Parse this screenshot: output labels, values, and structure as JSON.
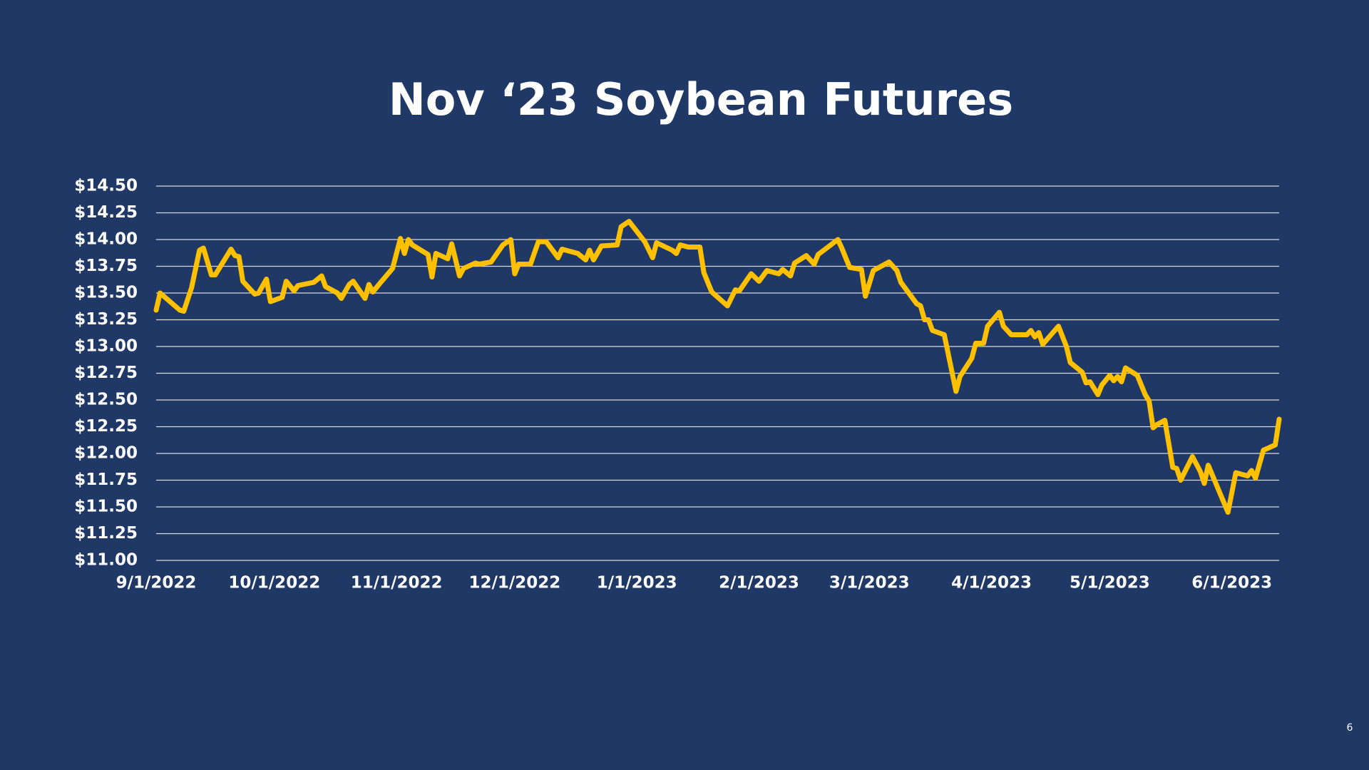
{
  "chart_data": {
    "type": "line",
    "title": "Nov ‘23 Soybean Futures",
    "x": [
      "2022-09-01",
      "2022-09-02",
      "2022-09-07",
      "2022-09-08",
      "2022-09-10",
      "2022-09-12",
      "2022-09-13",
      "2022-09-15",
      "2022-09-16",
      "2022-09-20",
      "2022-09-21",
      "2022-09-22",
      "2022-09-23",
      "2022-09-26",
      "2022-09-27",
      "2022-09-29",
      "2022-09-30",
      "2022-10-03",
      "2022-10-04",
      "2022-10-06",
      "2022-10-07",
      "2022-10-11",
      "2022-10-13",
      "2022-10-14",
      "2022-10-17",
      "2022-10-18",
      "2022-10-20",
      "2022-10-21",
      "2022-10-24",
      "2022-10-25",
      "2022-10-26",
      "2022-10-28",
      "2022-10-31",
      "2022-11-02",
      "2022-11-03",
      "2022-11-04",
      "2022-11-05",
      "2022-11-09",
      "2022-11-10",
      "2022-11-11",
      "2022-11-14",
      "2022-11-15",
      "2022-11-17",
      "2022-11-18",
      "2022-11-21",
      "2022-11-22",
      "2022-11-25",
      "2022-11-28",
      "2022-11-30",
      "2022-12-01",
      "2022-12-02",
      "2022-12-05",
      "2022-12-07",
      "2022-12-09",
      "2022-12-12",
      "2022-12-13",
      "2022-12-15",
      "2022-12-17",
      "2022-12-19",
      "2022-12-20",
      "2022-12-21",
      "2022-12-23",
      "2022-12-27",
      "2022-12-28",
      "2022-12-30",
      "2023-01-03",
      "2023-01-05",
      "2023-01-06",
      "2023-01-10",
      "2023-01-11",
      "2023-01-12",
      "2023-01-14",
      "2023-01-17",
      "2023-01-18",
      "2023-01-20",
      "2023-01-24",
      "2023-01-26",
      "2023-01-27",
      "2023-01-30",
      "2023-02-01",
      "2023-02-03",
      "2023-02-06",
      "2023-02-07",
      "2023-02-09",
      "2023-02-10",
      "2023-02-13",
      "2023-02-15",
      "2023-02-16",
      "2023-02-21",
      "2023-02-22",
      "2023-02-24",
      "2023-02-27",
      "2023-02-28",
      "2023-03-02",
      "2023-03-06",
      "2023-03-08",
      "2023-03-09",
      "2023-03-10",
      "2023-03-13",
      "2023-03-14",
      "2023-03-15",
      "2023-03-16",
      "2023-03-17",
      "2023-03-20",
      "2023-03-23",
      "2023-03-24",
      "2023-03-27",
      "2023-03-28",
      "2023-03-30",
      "2023-03-31",
      "2023-04-03",
      "2023-04-04",
      "2023-04-06",
      "2023-04-10",
      "2023-04-11",
      "2023-04-12",
      "2023-04-13",
      "2023-04-14",
      "2023-04-18",
      "2023-04-20",
      "2023-04-21",
      "2023-04-24",
      "2023-04-25",
      "2023-04-26",
      "2023-04-28",
      "2023-04-29",
      "2023-05-01",
      "2023-05-02",
      "2023-05-03",
      "2023-05-04",
      "2023-05-05",
      "2023-05-08",
      "2023-05-10",
      "2023-05-11",
      "2023-05-12",
      "2023-05-13",
      "2023-05-15",
      "2023-05-17",
      "2023-05-18",
      "2023-05-19",
      "2023-05-22",
      "2023-05-24",
      "2023-05-25",
      "2023-05-26",
      "2023-05-31",
      "2023-06-02",
      "2023-06-05",
      "2023-06-06",
      "2023-06-07",
      "2023-06-09",
      "2023-06-12",
      "2023-06-13"
    ],
    "series": [
      {
        "color": "#ffc000",
        "values": [
          13.34,
          13.5,
          13.34,
          13.33,
          13.55,
          13.9,
          13.92,
          13.67,
          13.67,
          13.91,
          13.85,
          13.84,
          13.61,
          13.49,
          13.5,
          13.63,
          13.42,
          13.46,
          13.61,
          13.52,
          13.57,
          13.6,
          13.66,
          13.56,
          13.5,
          13.45,
          13.58,
          13.61,
          13.45,
          13.58,
          13.51,
          13.6,
          13.73,
          14.01,
          13.87,
          14.0,
          13.95,
          13.86,
          13.65,
          13.87,
          13.82,
          13.96,
          13.66,
          13.73,
          13.78,
          13.77,
          13.79,
          13.95,
          14.0,
          13.68,
          13.77,
          13.77,
          13.98,
          13.98,
          13.83,
          13.91,
          13.89,
          13.87,
          13.81,
          13.9,
          13.81,
          13.94,
          13.95,
          14.12,
          14.17,
          13.98,
          13.83,
          13.97,
          13.9,
          13.87,
          13.95,
          13.93,
          13.93,
          13.69,
          13.51,
          13.38,
          13.53,
          13.52,
          13.68,
          13.61,
          13.71,
          13.68,
          13.72,
          13.66,
          13.78,
          13.85,
          13.77,
          13.86,
          14.0,
          13.92,
          13.74,
          13.72,
          13.47,
          13.71,
          13.79,
          13.71,
          13.6,
          13.55,
          13.4,
          13.38,
          13.25,
          13.25,
          13.15,
          13.11,
          12.58,
          12.72,
          12.89,
          13.03,
          13.03,
          13.19,
          13.32,
          13.19,
          13.11,
          13.11,
          13.15,
          13.09,
          13.13,
          13.02,
          13.19,
          13.0,
          12.85,
          12.76,
          12.66,
          12.67,
          12.55,
          12.64,
          12.73,
          12.68,
          12.72,
          12.67,
          12.8,
          12.73,
          12.55,
          12.49,
          12.24,
          12.27,
          12.31,
          11.87,
          11.86,
          11.75,
          11.97,
          11.83,
          11.72,
          11.89,
          11.45,
          11.82,
          11.79,
          11.84,
          11.77,
          12.03,
          12.08,
          12.32
        ]
      }
    ],
    "xlim": [
      "2022-09-01",
      "2023-06-13"
    ],
    "xticks": [
      {
        "value": "2022-09-01",
        "label": "9/1/2022"
      },
      {
        "value": "2022-10-01",
        "label": "10/1/2022"
      },
      {
        "value": "2022-11-01",
        "label": "11/1/2022"
      },
      {
        "value": "2022-12-01",
        "label": "12/1/2022"
      },
      {
        "value": "2023-01-01",
        "label": "1/1/2023"
      },
      {
        "value": "2023-02-01",
        "label": "2/1/2023"
      },
      {
        "value": "2023-03-01",
        "label": "3/1/2023"
      },
      {
        "value": "2023-04-01",
        "label": "4/1/2023"
      },
      {
        "value": "2023-05-01",
        "label": "5/1/2023"
      },
      {
        "value": "2023-06-01",
        "label": "6/1/2023"
      }
    ],
    "ylim": [
      11,
      14.5
    ],
    "yticks": [
      {
        "value": 11,
        "label": "$11.00"
      },
      {
        "value": 11.25,
        "label": "$11.25"
      },
      {
        "value": 11.5,
        "label": "$11.50"
      },
      {
        "value": 11.75,
        "label": "$11.75"
      },
      {
        "value": 12,
        "label": "$12.00"
      },
      {
        "value": 12.25,
        "label": "$12.25"
      },
      {
        "value": 12.5,
        "label": "$12.50"
      },
      {
        "value": 12.75,
        "label": "$12.75"
      },
      {
        "value": 13,
        "label": "$13.00"
      },
      {
        "value": 13.25,
        "label": "$13.25"
      },
      {
        "value": 13.5,
        "label": "$13.50"
      },
      {
        "value": 13.75,
        "label": "$13.75"
      },
      {
        "value": 14,
        "label": "$14.00"
      },
      {
        "value": 14.25,
        "label": "$14.25"
      },
      {
        "value": 14.5,
        "label": "$14.50"
      }
    ],
    "grid": true
  },
  "page_number": "6"
}
